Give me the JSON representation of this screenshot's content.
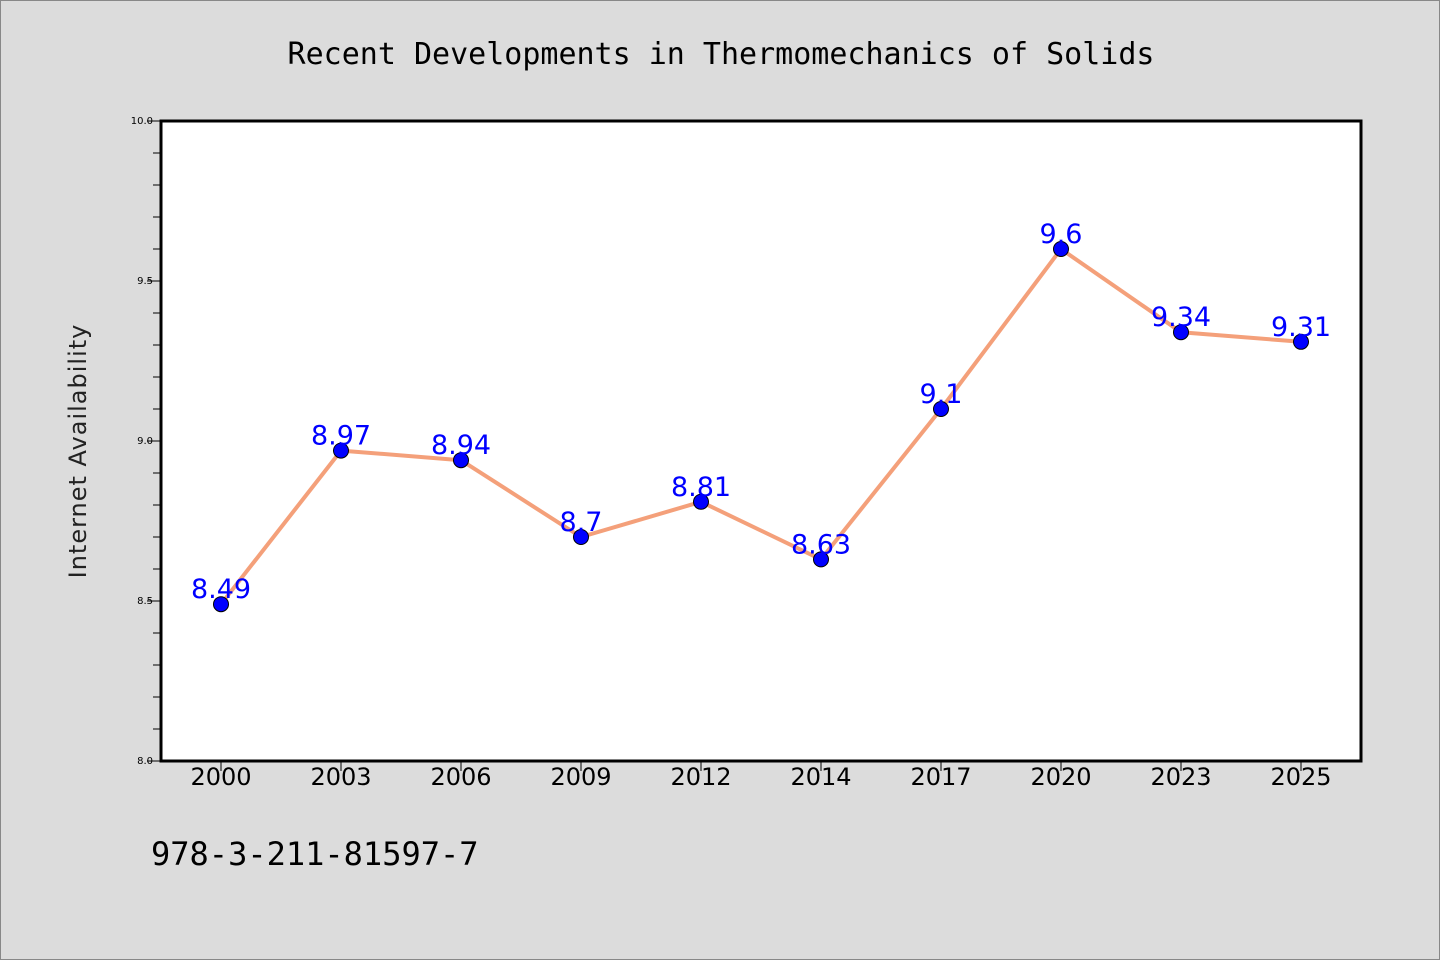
{
  "chart_data": {
    "type": "line",
    "title": "Recent Developments in Thermomechanics of Solids",
    "xlabel": "",
    "ylabel": "Internet Availability",
    "categories": [
      "2000",
      "2003",
      "2006",
      "2009",
      "2012",
      "2014",
      "2017",
      "2020",
      "2023",
      "2025"
    ],
    "values": [
      8.49,
      8.97,
      8.94,
      8.7,
      8.81,
      8.63,
      9.1,
      9.6,
      9.34,
      9.31
    ],
    "data_labels": [
      "8.49",
      "8.97",
      "8.94",
      "8.7",
      "8.81",
      "8.63",
      "9.1",
      "9.6",
      "9.34",
      "9.31"
    ],
    "ylim": [
      8.0,
      10.0
    ],
    "yticks": [
      "8.0",
      "8.5",
      "9.0",
      "9.5",
      "10.0"
    ],
    "grid": false,
    "line_color": "#f4a07a",
    "marker_color": "#0000ff",
    "label_color": "#0000ff"
  },
  "footer": {
    "isbn": "978-3-211-81597-7"
  }
}
